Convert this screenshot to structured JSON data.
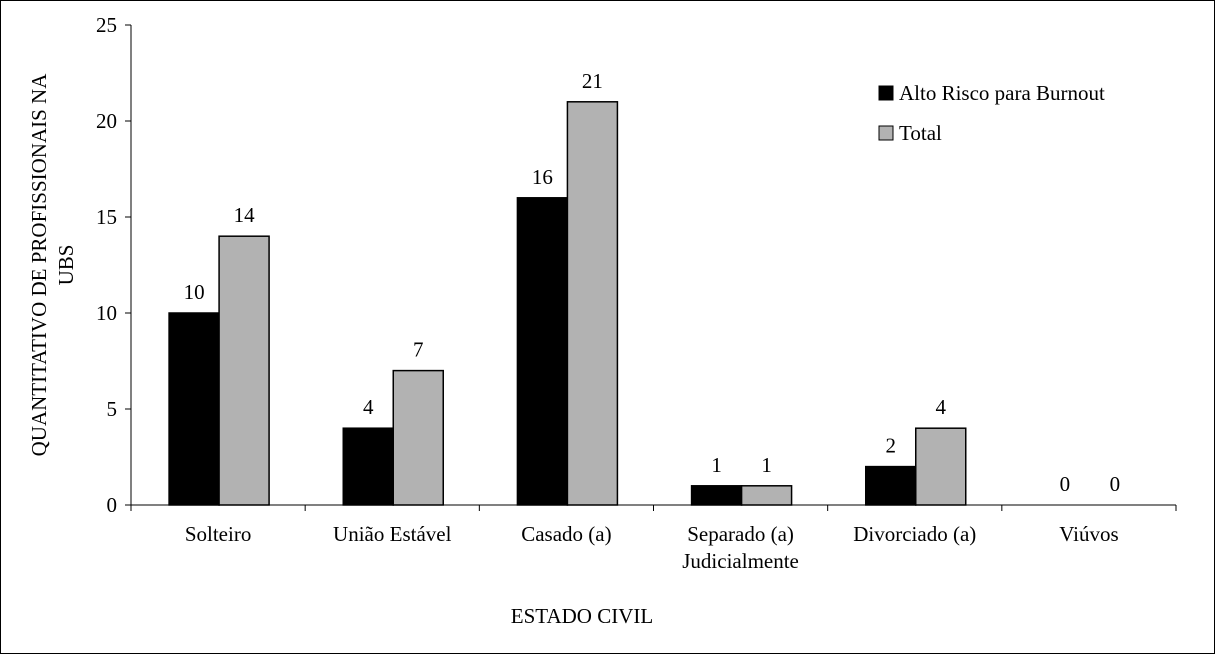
{
  "chart_data": {
    "type": "bar",
    "categories": [
      [
        "Solteiro"
      ],
      [
        "União Estável"
      ],
      [
        "Casado (a)"
      ],
      [
        "Separado (a)",
        "Judicialmente"
      ],
      [
        "Divorciado (a)"
      ],
      [
        "Viúvos"
      ]
    ],
    "series": [
      {
        "name": "Alto Risco para Burnout",
        "values": [
          10,
          4,
          16,
          1,
          2,
          0
        ],
        "color": "#000000"
      },
      {
        "name": "Total",
        "values": [
          14,
          7,
          21,
          1,
          4,
          0
        ],
        "color": "#b2b2b2"
      }
    ],
    "title": "",
    "xlabel": "ESTADO CIVIL",
    "ylabel": [
      "QUANTITATIVO  DE PROFISSIONAIS NA",
      "UBS"
    ],
    "ylim": [
      0,
      25
    ],
    "yticks": [
      0,
      5,
      10,
      15,
      20,
      25
    ],
    "grid": false,
    "legend": "top-right",
    "data_labels": true
  }
}
